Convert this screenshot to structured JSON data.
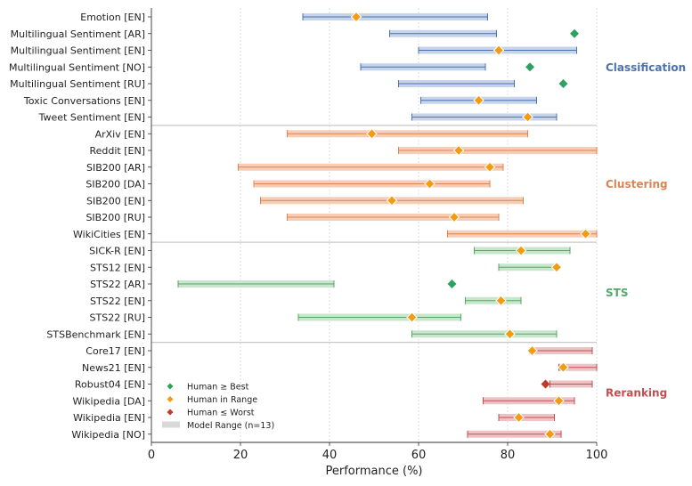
{
  "chart_data": {
    "type": "range-dot",
    "xlabel": "Performance (%)",
    "xlim": [
      0,
      100
    ],
    "xticks": [
      0,
      20,
      40,
      60,
      80,
      100
    ],
    "grid": "vertical dotted",
    "legend": {
      "placement": "bottom-left",
      "items": [
        {
          "label": "Human ≥ Best",
          "marker": "diamond",
          "color": "#2ca25f"
        },
        {
          "label": "Human in Range",
          "marker": "diamond",
          "color": "#f39c12"
        },
        {
          "label": "Human ≤ Worst",
          "marker": "diamond",
          "color": "#c0392b"
        },
        {
          "label": "Model Range (n=13)",
          "marker": "bar",
          "color": "#d9d9d9"
        }
      ]
    },
    "groups": [
      {
        "name": "Classification",
        "color": "#4c72b0",
        "fill": "#c6d4ea",
        "rows": [
          {
            "label": "Emotion [EN]",
            "min": 34,
            "max": 75.5,
            "human": 46,
            "status": "in"
          },
          {
            "label": "Multilingual Sentiment [AR]",
            "min": 53.5,
            "max": 77.5,
            "human": 95,
            "status": "best"
          },
          {
            "label": "Multilingual Sentiment [EN]",
            "min": 60,
            "max": 95.5,
            "human": 78,
            "status": "in"
          },
          {
            "label": "Multilingual Sentiment [NO]",
            "min": 47,
            "max": 75,
            "human": 85,
            "status": "best"
          },
          {
            "label": "Multilingual Sentiment [RU]",
            "min": 55.5,
            "max": 81.5,
            "human": 92.5,
            "status": "best"
          },
          {
            "label": "Toxic Conversations [EN]",
            "min": 60.5,
            "max": 86.5,
            "human": 73.5,
            "status": "in"
          },
          {
            "label": "Tweet Sentiment [EN]",
            "min": 58.5,
            "max": 91,
            "human": 84.5,
            "status": "in"
          }
        ]
      },
      {
        "name": "Clustering",
        "color": "#dd8452",
        "fill": "#f6cdb6",
        "rows": [
          {
            "label": "ArXiv [EN]",
            "min": 30.5,
            "max": 84.5,
            "human": 49.5,
            "status": "in"
          },
          {
            "label": "Reddit [EN]",
            "min": 55.5,
            "max": 100,
            "human": 69,
            "status": "in"
          },
          {
            "label": "SIB200 [AR]",
            "min": 19.5,
            "max": 79,
            "human": 76,
            "status": "in"
          },
          {
            "label": "SIB200 [DA]",
            "min": 23,
            "max": 76,
            "human": 62.5,
            "status": "in"
          },
          {
            "label": "SIB200 [EN]",
            "min": 24.5,
            "max": 83.5,
            "human": 54,
            "status": "in"
          },
          {
            "label": "SIB200 [RU]",
            "min": 30.5,
            "max": 78,
            "human": 68,
            "status": "in"
          },
          {
            "label": "WikiCities [EN]",
            "min": 66.5,
            "max": 100,
            "human": 97.5,
            "status": "in"
          }
        ]
      },
      {
        "name": "STS",
        "color": "#55a868",
        "fill": "#c8e6cc",
        "rows": [
          {
            "label": "SICK-R [EN]",
            "min": 72.5,
            "max": 94,
            "human": 83,
            "status": "in"
          },
          {
            "label": "STS12 [EN]",
            "min": 78,
            "max": 91,
            "human": 91,
            "status": "in"
          },
          {
            "label": "STS22 [AR]",
            "min": 6,
            "max": 41,
            "human": 67.5,
            "status": "best"
          },
          {
            "label": "STS22 [EN]",
            "min": 70.5,
            "max": 83,
            "human": 78.5,
            "status": "in"
          },
          {
            "label": "STS22 [RU]",
            "min": 33,
            "max": 69.5,
            "human": 58.5,
            "status": "in"
          },
          {
            "label": "STSBenchmark [EN]",
            "min": 58.5,
            "max": 91,
            "human": 80.5,
            "status": "in"
          }
        ]
      },
      {
        "name": "Reranking",
        "color": "#c44e52",
        "fill": "#eec3c5",
        "rows": [
          {
            "label": "Core17 [EN]",
            "min": 85,
            "max": 99,
            "human": 85.5,
            "status": "in"
          },
          {
            "label": "News21 [EN]",
            "min": 91.5,
            "max": 100,
            "human": 92.5,
            "status": "in"
          },
          {
            "label": "Robust04 [EN]",
            "min": 89.5,
            "max": 99,
            "human": 88.5,
            "status": "worst"
          },
          {
            "label": "Wikipedia [DA]",
            "min": 74.5,
            "max": 95,
            "human": 91.5,
            "status": "in"
          },
          {
            "label": "Wikipedia [EN]",
            "min": 78,
            "max": 90.5,
            "human": 82.5,
            "status": "in"
          },
          {
            "label": "Wikipedia [NO]",
            "min": 71,
            "max": 92,
            "human": 89.5,
            "status": "in"
          }
        ]
      }
    ]
  }
}
